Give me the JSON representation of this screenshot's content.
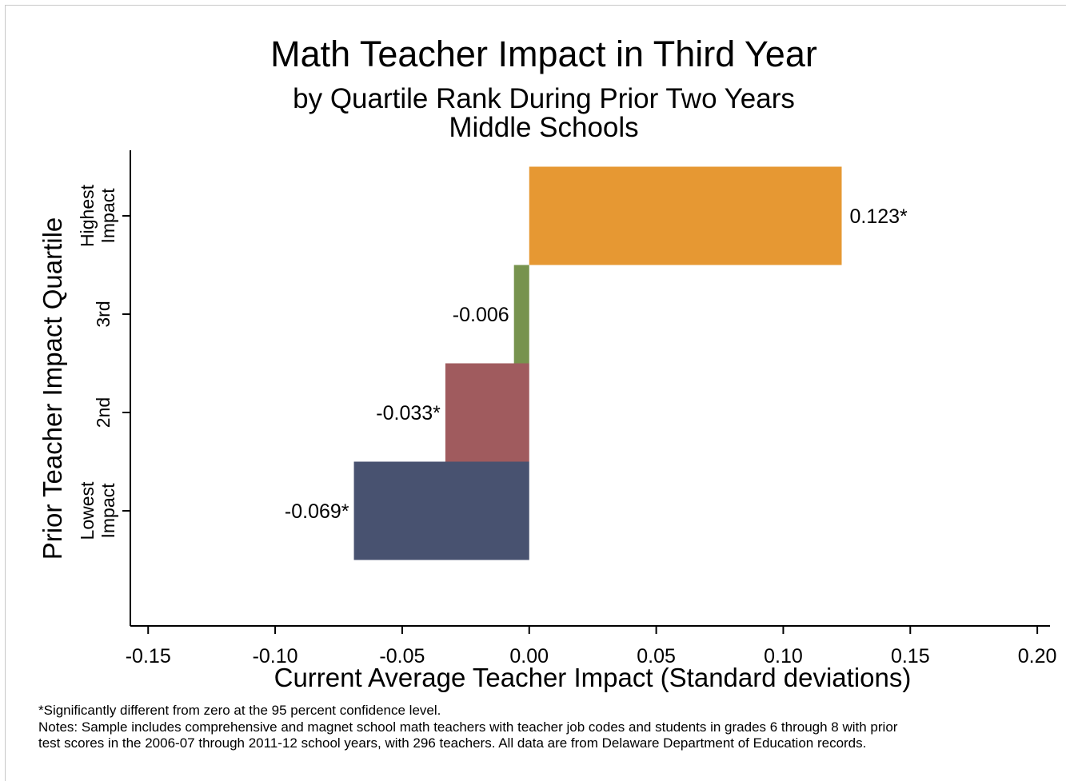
{
  "chart_data": {
    "type": "bar",
    "orientation": "horizontal",
    "title": "Math Teacher Impact in Third Year",
    "subtitle": [
      "by Quartile Rank During Prior Two Years",
      "Middle Schools"
    ],
    "xlabel": "Current Average Teacher Impact (Standard deviations)",
    "ylabel": "Prior Teacher Impact Quartile",
    "xlim": [
      -0.157,
      0.205
    ],
    "xticks": [
      {
        "value": -0.15,
        "label": "-0.15"
      },
      {
        "value": -0.1,
        "label": "-0.10"
      },
      {
        "value": -0.05,
        "label": "-0.05"
      },
      {
        "value": 0.0,
        "label": "0.00"
      },
      {
        "value": 0.05,
        "label": "0.05"
      },
      {
        "value": 0.1,
        "label": "0.10"
      },
      {
        "value": 0.15,
        "label": "0.15"
      },
      {
        "value": 0.2,
        "label": "0.20"
      }
    ],
    "grid": false,
    "categories": [
      {
        "label_lines": [
          "Lowest",
          "Impact"
        ],
        "value": -0.069,
        "data_label": "-0.069*",
        "color": "#485270"
      },
      {
        "label_lines": [
          "2nd"
        ],
        "value": -0.033,
        "data_label": "-0.033*",
        "color": "#a05b5e"
      },
      {
        "label_lines": [
          "3rd"
        ],
        "value": -0.006,
        "data_label": "-0.006",
        "color": "#77934e"
      },
      {
        "label_lines": [
          "Highest",
          "Impact"
        ],
        "value": 0.123,
        "data_label": "0.123*",
        "color": "#e69833"
      }
    ]
  },
  "notes": {
    "significance": "*Significantly different from zero at the 95 percent confidence level.",
    "line1": "Notes: Sample includes comprehensive and magnet school math teachers with teacher job codes and students in grades 6 through 8 with prior",
    "line2": "test scores in the 2006-07 through 2011-12 school years, with 296 teachers. All data are from Delaware Department of Education records."
  }
}
